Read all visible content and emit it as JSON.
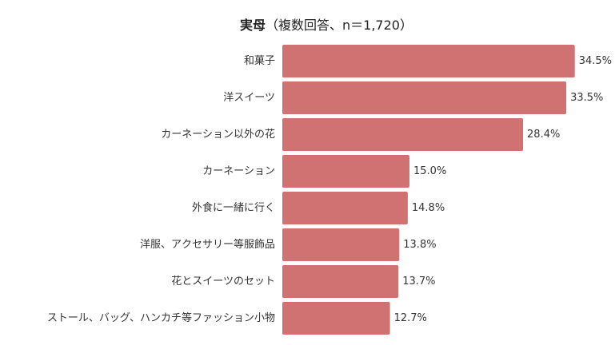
{
  "chart_data": {
    "type": "bar",
    "orientation": "horizontal",
    "title": "実母",
    "subtitle": "（複数回答、n＝1,720）",
    "categories": [
      "和菓子",
      "洋スイーツ",
      "カーネーション以外の花",
      "カーネーション",
      "外食に一緒に行く",
      "洋服、アクセサリー等服飾品",
      "花とスイーツのセット",
      "ストール、バッグ、ハンカチ等ファッション小物"
    ],
    "values": [
      34.5,
      33.5,
      28.4,
      15.0,
      14.8,
      13.8,
      13.7,
      12.7
    ],
    "value_labels": [
      "34.5%",
      "33.5%",
      "28.4%",
      "15.0%",
      "14.8%",
      "13.8%",
      "13.7%",
      "12.7%"
    ],
    "xlim": [
      0,
      35
    ],
    "grid": false,
    "colors": {
      "bar": "#d17272"
    }
  }
}
